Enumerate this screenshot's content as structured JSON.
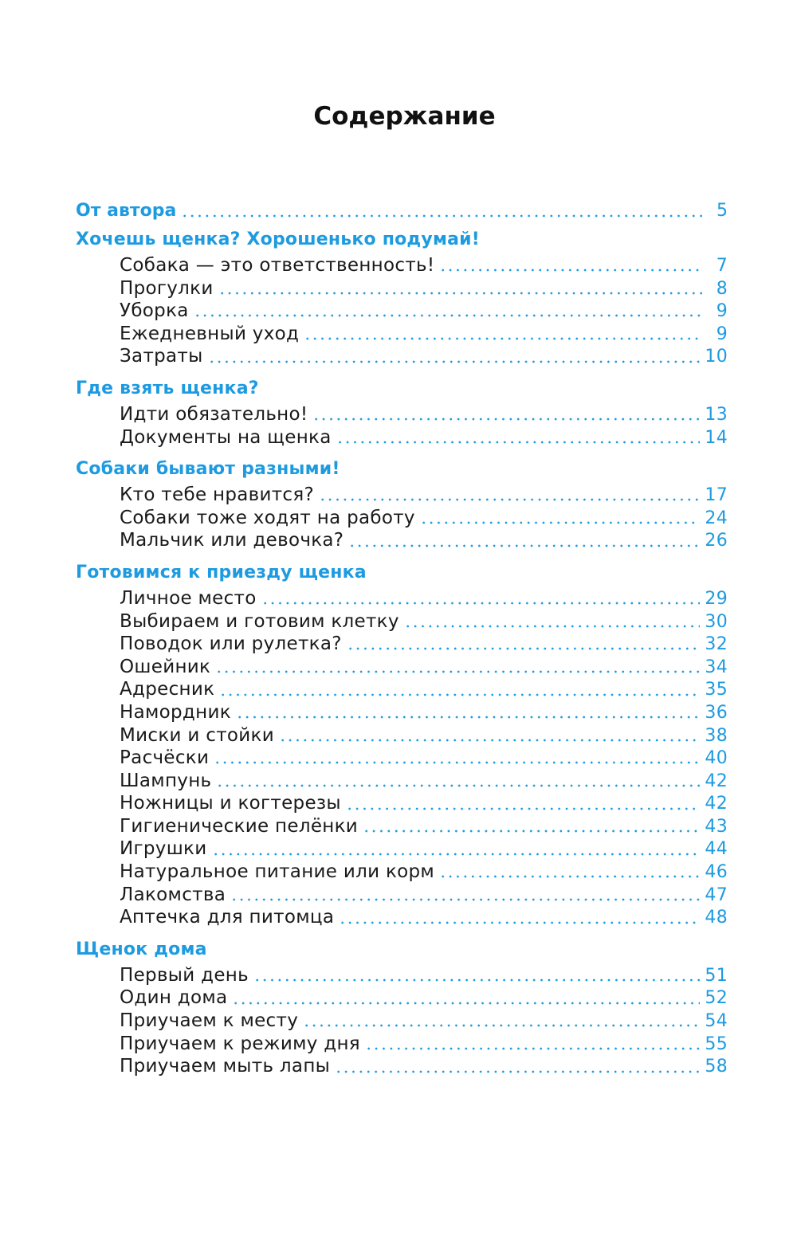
{
  "title": "Содержание",
  "intro": {
    "label": "От автора",
    "page": "5"
  },
  "sections": [
    {
      "heading": "Хочешь щенка? Хорошенько подумай!",
      "entries": [
        {
          "label": "Собака — это ответственность!",
          "page": "7"
        },
        {
          "label": "Прогулки",
          "page": "8"
        },
        {
          "label": "Уборка",
          "page": "9"
        },
        {
          "label": "Ежедневный уход",
          "page": "9"
        },
        {
          "label": "Затраты",
          "page": "10"
        }
      ]
    },
    {
      "heading": "Где взять щенка?",
      "entries": [
        {
          "label": "Идти обязательно!",
          "page": "13"
        },
        {
          "label": "Документы на щенка",
          "page": "14"
        }
      ]
    },
    {
      "heading": "Собаки бывают разными!",
      "entries": [
        {
          "label": "Кто тебе нравится?",
          "page": "17"
        },
        {
          "label": "Собаки тоже ходят на работу",
          "page": "24"
        },
        {
          "label": "Мальчик или девочка?",
          "page": "26"
        }
      ]
    },
    {
      "heading": "Готовимся к приезду щенка",
      "entries": [
        {
          "label": "Личное место",
          "page": "29"
        },
        {
          "label": "Выбираем и готовим клетку",
          "page": "30"
        },
        {
          "label": "Поводок или рулетка?",
          "page": "32"
        },
        {
          "label": "Ошейник",
          "page": "34"
        },
        {
          "label": "Адресник",
          "page": "35"
        },
        {
          "label": "Намордник",
          "page": "36"
        },
        {
          "label": "Миски и стойки",
          "page": "38"
        },
        {
          "label": "Расчёски",
          "page": "40"
        },
        {
          "label": "Шампунь",
          "page": "42"
        },
        {
          "label": "Ножницы и когтерезы",
          "page": "42"
        },
        {
          "label": "Гигиенические пелёнки",
          "page": "43"
        },
        {
          "label": "Игрушки",
          "page": "44"
        },
        {
          "label": "Натуральное питание или корм",
          "page": "46"
        },
        {
          "label": "Лакомства",
          "page": "47"
        },
        {
          "label": "Аптечка для питомца",
          "page": "48"
        }
      ]
    },
    {
      "heading": "Щенок дома",
      "entries": [
        {
          "label": "Первый день",
          "page": "51"
        },
        {
          "label": "Один дома",
          "page": "52"
        },
        {
          "label": "Приучаем к месту",
          "page": "54"
        },
        {
          "label": "Приучаем к режиму дня",
          "page": "55"
        },
        {
          "label": "Приучаем мыть лапы",
          "page": "58"
        }
      ]
    }
  ],
  "colors": {
    "accent": "#1e9be0",
    "text": "#1a1a1a"
  }
}
